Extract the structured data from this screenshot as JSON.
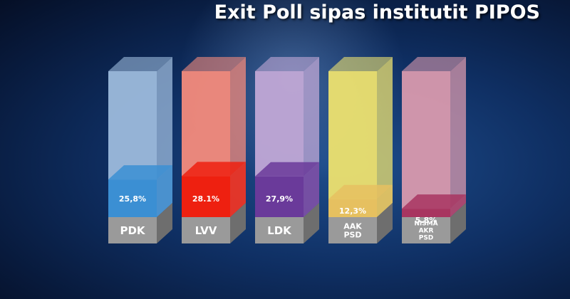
{
  "title": "Exit Poll sipas institutit PIPOS",
  "chart_data": {
    "type": "bar",
    "title": "Exit Poll sipas institutit PIPOS",
    "categories": [
      [
        "PDK"
      ],
      [
        "LVV"
      ],
      [
        "LDK"
      ],
      [
        "AAK",
        "PSD"
      ],
      [
        "NISMA",
        "AKR",
        "PSD"
      ]
    ],
    "values": [
      25.8,
      28.1,
      27.9,
      12.3,
      5.8
    ],
    "value_labels": [
      "25,8%",
      "28.1%",
      "27,9%",
      "12,3%",
      "5.8%"
    ],
    "ylim": [
      0,
      100
    ],
    "colors": [
      {
        "fill": "#3b8fd3",
        "ghost": "#9dbbdc"
      },
      {
        "fill": "#ee2010",
        "ghost": "#f48b7c"
      },
      {
        "fill": "#6a3a9a",
        "ghost": "#c1a8d6"
      },
      {
        "fill": "#e6c060",
        "ghost": "#ede16f"
      },
      {
        "fill": "#a83560",
        "ghost": "#d99aae"
      }
    ]
  }
}
